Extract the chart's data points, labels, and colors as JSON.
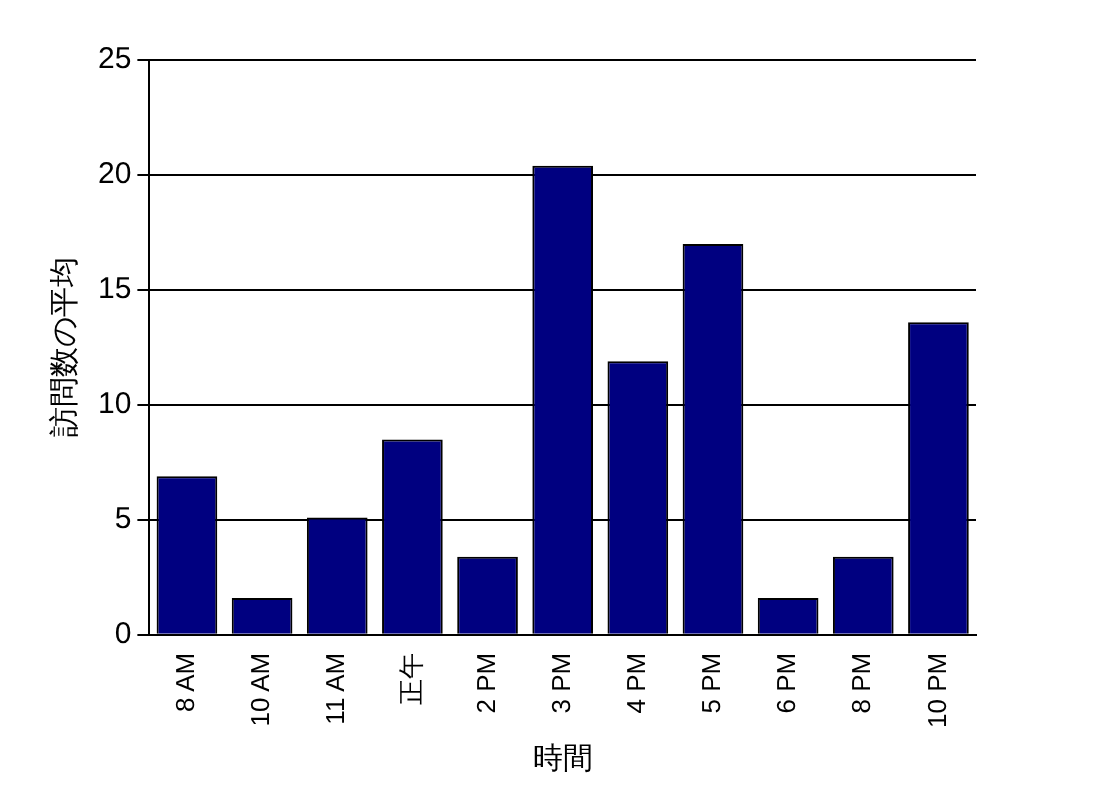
{
  "chart_data": {
    "type": "bar",
    "xlabel": "時間",
    "ylabel": "訪問数の平均",
    "categories": [
      "8 AM",
      "10 AM",
      "11 AM",
      "正午",
      "2 PM",
      "3 PM",
      "4 PM",
      "5 PM",
      "6 PM",
      "8 PM",
      "10 PM"
    ],
    "values": [
      6.9,
      1.6,
      5.1,
      8.5,
      3.4,
      20.4,
      11.9,
      17,
      1.6,
      3.4,
      13.6
    ],
    "color": "#000080",
    "ylim": [
      0,
      25
    ],
    "yticks": [
      0,
      5,
      10,
      15,
      20,
      25
    ],
    "grid": "y",
    "legend": false
  }
}
